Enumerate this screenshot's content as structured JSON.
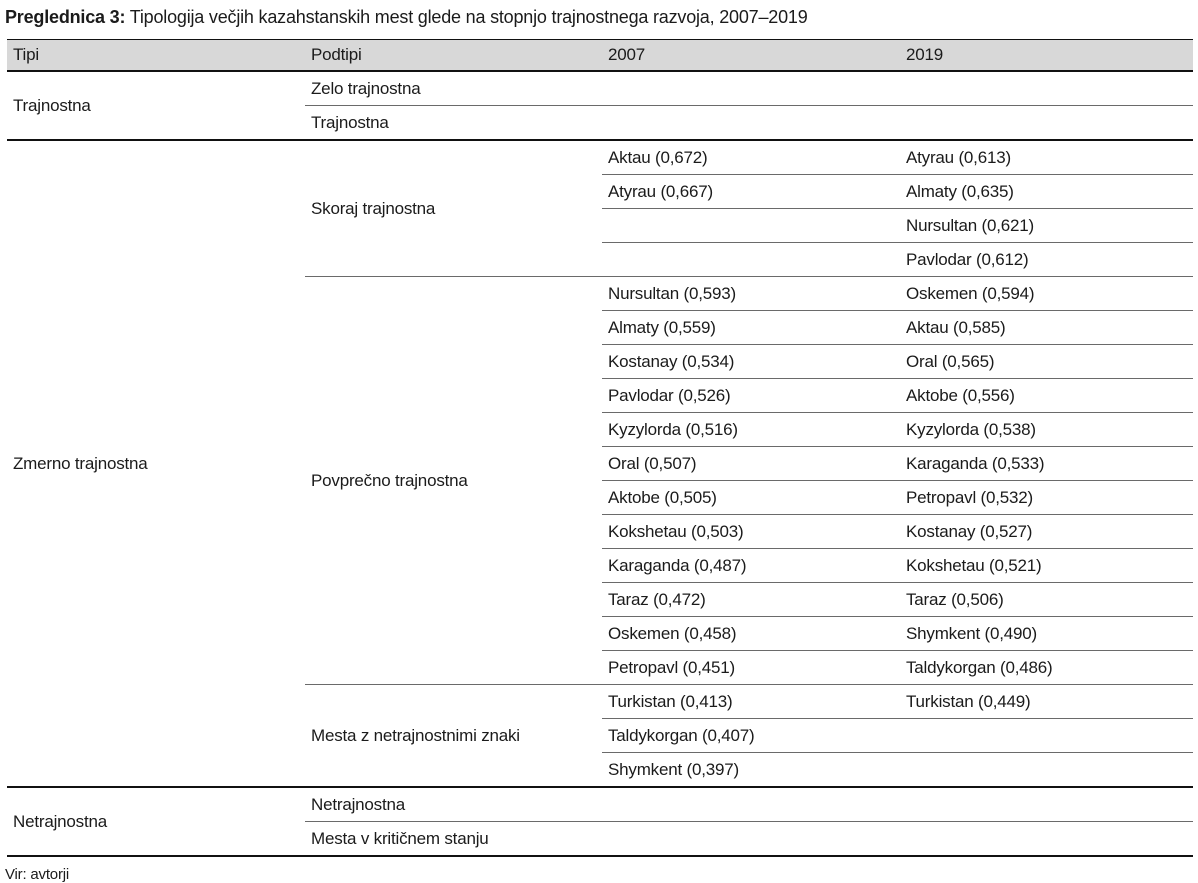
{
  "title": {
    "bold": "Preglednica 3:",
    "rest": "Tipologija večjih kazahstanskih mest glede na stopnjo trajnostnega razvoja, 2007–2019"
  },
  "source": "Vir: avtorji",
  "colors": {
    "header_bg": "#d8d8d8",
    "dark_line": "#111111",
    "light_line": "#6a6a6a",
    "text": "#1b1b1b"
  },
  "table": {
    "headers": [
      "Tipi",
      "Podtipi",
      "2007",
      "2019"
    ],
    "groups": [
      {
        "tip": "Trajnostna",
        "subgroups": [
          {
            "podtip": "Zelo trajnostna",
            "rows": [
              {
                "y2007": "",
                "y2019": ""
              }
            ]
          },
          {
            "podtip": "Trajnostna",
            "rows": [
              {
                "y2007": "",
                "y2019": ""
              }
            ]
          }
        ]
      },
      {
        "tip": "Zmerno trajnostna",
        "subgroups": [
          {
            "podtip": "Skoraj trajnostna",
            "rows": [
              {
                "y2007": "Aktau (0,672)",
                "y2019": "Atyrau (0,613)"
              },
              {
                "y2007": "Atyrau (0,667)",
                "y2019": "Almaty (0,635)"
              },
              {
                "y2007": "",
                "y2019": "Nursultan (0,621)"
              },
              {
                "y2007": "",
                "y2019": "Pavlodar (0,612)"
              }
            ]
          },
          {
            "podtip": "Povprečno trajnostna",
            "rows": [
              {
                "y2007": "Nursultan (0,593)",
                "y2019": "Oskemen (0,594)"
              },
              {
                "y2007": "Almaty (0,559)",
                "y2019": "Aktau (0,585)"
              },
              {
                "y2007": "Kostanay (0,534)",
                "y2019": "Oral (0,565)"
              },
              {
                "y2007": "Pavlodar (0,526)",
                "y2019": "Aktobe (0,556)"
              },
              {
                "y2007": "Kyzylorda (0,516)",
                "y2019": "Kyzylorda (0,538)"
              },
              {
                "y2007": "Oral (0,507)",
                "y2019": "Karaganda (0,533)"
              },
              {
                "y2007": "Aktobe (0,505)",
                "y2019": "Petropavl (0,532)"
              },
              {
                "y2007": "Kokshetau (0,503)",
                "y2019": "Kostanay (0,527)"
              },
              {
                "y2007": "Karaganda (0,487)",
                "y2019": "Kokshetau (0,521)"
              },
              {
                "y2007": "Taraz (0,472)",
                "y2019": "Taraz (0,506)"
              },
              {
                "y2007": "Oskemen (0,458)",
                "y2019": "Shymkent (0,490)"
              },
              {
                "y2007": "Petropavl (0,451)",
                "y2019": "Taldykorgan (0,486)"
              }
            ]
          },
          {
            "podtip": "Mesta z netrajnostnimi znaki",
            "rows": [
              {
                "y2007": "Turkistan (0,413)",
                "y2019": "Turkistan (0,449)"
              },
              {
                "y2007": "Taldykorgan (0,407)",
                "y2019": ""
              },
              {
                "y2007": "Shymkent (0,397)",
                "y2019": ""
              }
            ]
          }
        ]
      },
      {
        "tip": "Netrajnostna",
        "subgroups": [
          {
            "podtip": "Netrajnostna",
            "rows": [
              {
                "y2007": "",
                "y2019": ""
              }
            ]
          },
          {
            "podtip": "Mesta v kritičnem stanju",
            "rows": [
              {
                "y2007": "",
                "y2019": ""
              }
            ]
          }
        ]
      }
    ]
  }
}
